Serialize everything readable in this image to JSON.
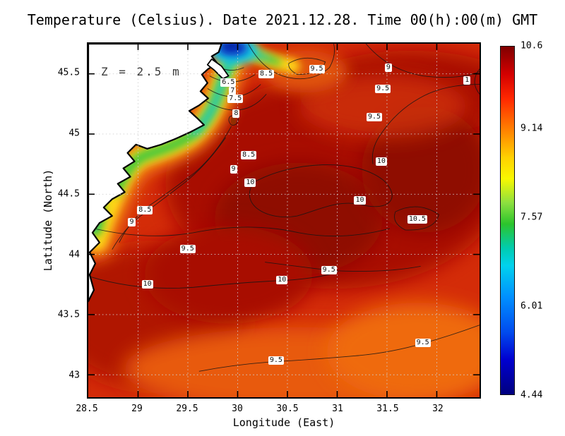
{
  "title": "Temperature (Celsius). Date 2021.12.28. Time 00(h):00(m) GMT",
  "annotation": "Z = 2.5 m",
  "axes": {
    "x": {
      "label": "Longitude (East)",
      "ticks": [
        "28.5",
        "29",
        "29.5",
        "30",
        "30.5",
        "31",
        "31.5",
        "32"
      ]
    },
    "y": {
      "label": "Latitude (North)",
      "ticks": [
        "43",
        "43.5",
        "44",
        "44.5",
        "45",
        "45.5"
      ]
    }
  },
  "colorbar": {
    "ticks": [
      "10.6",
      "9.14",
      "7.57",
      "6.01",
      "4.44"
    ],
    "max": 10.6,
    "min": 4.44,
    "gradient": [
      "#7f0000 0%",
      "#d40000 8%",
      "#ff2800 15%",
      "#ff8c00 25%",
      "#ffd200 32%",
      "#f8f800 38%",
      "#8ce040 45%",
      "#2cc42c 51%",
      "#00ccb0 58%",
      "#00d2ee 63%",
      "#0090ff 72%",
      "#004cee 82%",
      "#0000d0 90%",
      "#00007f 100%"
    ]
  },
  "chart_data": {
    "type": "heatmap",
    "title": "Temperature (Celsius). Date 2021.12.28. Time 00(h):00(m) GMT",
    "xlabel": "Longitude (East)",
    "ylabel": "Latitude (North)",
    "xlim": [
      28.5,
      32.43
    ],
    "ylim": [
      42.81,
      45.75
    ],
    "value_label": "Temperature (Celsius)",
    "value_range": [
      4.44,
      10.6
    ],
    "depth_annotation": "Z = 2.5 m",
    "datetime": "2021.12.28 00(h):00(m) GMT",
    "colormap": "jet",
    "grid": {
      "shown": true,
      "style": "dotted",
      "x_step": 0.5,
      "y_step": 0.5
    },
    "legend_position": "right colorbar",
    "contour_levels": [
      6.5,
      7,
      7.5,
      8,
      8.5,
      9,
      9.5,
      10,
      10.5
    ],
    "features": [
      {
        "region": "open sea center and east",
        "approx_value": "9.5 to 10.6 C"
      },
      {
        "region": "northwest coastal band along land",
        "approx_value": "6 to 9 C decreasing toward coast"
      },
      {
        "region": "estuary at top near 30E",
        "approx_value": "4.44 to 6 C (coldest)"
      },
      {
        "region": "bottom band near 43N",
        "approx_value": "9 to 9.5 C"
      }
    ],
    "contour_labels": [
      {
        "text": "6.5",
        "x": 35.8,
        "y": 10.9
      },
      {
        "text": "7",
        "x": 36.9,
        "y": 13.3
      },
      {
        "text": "7.5",
        "x": 37.6,
        "y": 15.6
      },
      {
        "text": "8",
        "x": 37.8,
        "y": 19.8
      },
      {
        "text": "8.5",
        "x": 45.5,
        "y": 8.5
      },
      {
        "text": "9.5",
        "x": 58.4,
        "y": 7.1
      },
      {
        "text": "9",
        "x": 76.7,
        "y": 6.7
      },
      {
        "text": "9.5",
        "x": 75.3,
        "y": 12.7
      },
      {
        "text": "1",
        "x": 96.8,
        "y": 10.3
      },
      {
        "text": "9.5",
        "x": 73.1,
        "y": 20.8
      },
      {
        "text": "8.5",
        "x": 41.0,
        "y": 31.5
      },
      {
        "text": "9",
        "x": 37.1,
        "y": 35.6
      },
      {
        "text": "10",
        "x": 74.9,
        "y": 33.3
      },
      {
        "text": "10",
        "x": 41.4,
        "y": 39.4
      },
      {
        "text": "10",
        "x": 69.4,
        "y": 44.4
      },
      {
        "text": "10.5",
        "x": 84.1,
        "y": 49.7
      },
      {
        "text": "8.5",
        "x": 14.5,
        "y": 47.1
      },
      {
        "text": "9",
        "x": 11.1,
        "y": 50.5
      },
      {
        "text": "9.5",
        "x": 25.4,
        "y": 58.0
      },
      {
        "text": "9.5",
        "x": 61.5,
        "y": 64.0
      },
      {
        "text": "10",
        "x": 49.5,
        "y": 66.9
      },
      {
        "text": "10",
        "x": 15.1,
        "y": 68.1
      },
      {
        "text": "9.5",
        "x": 85.5,
        "y": 84.6
      },
      {
        "text": "9.5",
        "x": 48.0,
        "y": 89.7
      }
    ]
  }
}
